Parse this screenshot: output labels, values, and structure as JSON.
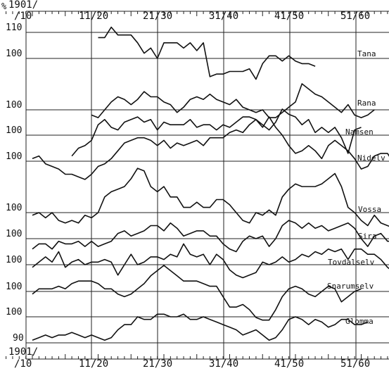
{
  "chart_data": {
    "type": "line",
    "unit_symbol": "%",
    "period_tick_labels": [
      "1901/\n/10",
      "11/20",
      "21/30",
      "31/40",
      "41/50",
      "51/60"
    ],
    "x_years": [
      1905,
      1906,
      1907,
      1908,
      1909,
      1910,
      1911,
      1912,
      1913,
      1914,
      1915,
      1916,
      1917,
      1918,
      1919,
      1920,
      1921,
      1922,
      1923,
      1924,
      1925,
      1926,
      1927,
      1928,
      1929,
      1930,
      1931,
      1932,
      1933,
      1934,
      1935,
      1936,
      1937,
      1938,
      1939,
      1940,
      1941,
      1942,
      1943,
      1944,
      1945,
      1946,
      1947,
      1948,
      1949,
      1950,
      1951,
      1952,
      1953,
      1954,
      1955,
      1956,
      1957,
      1958,
      1959,
      1960
    ],
    "y_reference_labels": [
      "110",
      "100",
      "100",
      "100",
      "100",
      "100",
      "100",
      "100",
      "100",
      "100",
      "90"
    ],
    "grid": true,
    "series": [
      {
        "name": "Tana",
        "start_year": 1915,
        "values": [
          108,
          108,
          112,
          109,
          109,
          109,
          106,
          102,
          104,
          100,
          106,
          106,
          106,
          104,
          106,
          103,
          106,
          93,
          94,
          94,
          95,
          95,
          95,
          96,
          92,
          98,
          101,
          101,
          99,
          101,
          99,
          98,
          98,
          97
        ]
      },
      {
        "name": "Rana",
        "start_year": 1914,
        "values": [
          98,
          97,
          100,
          103,
          105,
          104,
          102,
          104,
          107,
          105,
          105,
          103,
          102,
          99,
          101,
          104,
          105,
          104,
          106,
          104,
          103,
          102,
          104,
          101,
          100,
          99,
          100,
          97,
          97,
          99,
          101,
          103,
          110,
          108,
          106,
          105,
          103,
          101,
          99,
          102,
          98,
          97,
          98,
          100
        ]
      },
      {
        "name": "Namsen",
        "start_year": 1911,
        "values": [
          92,
          95,
          96,
          98,
          104,
          106,
          103,
          102,
          105,
          106,
          107,
          105,
          106,
          102,
          105,
          104,
          104,
          104,
          106,
          103,
          104,
          104,
          102,
          104,
          103,
          105,
          107,
          107,
          106,
          104,
          102,
          105,
          110,
          108,
          107,
          104,
          106,
          101,
          103,
          101,
          103,
          99,
          93,
          102,
          103
        ]
      },
      {
        "name": "Nidelv",
        "start_year": 1905,
        "values": [
          101,
          102,
          99,
          98,
          97,
          95,
          95,
          94,
          93,
          95,
          98,
          99,
          101,
          104,
          107,
          108,
          109,
          109,
          108,
          106,
          108,
          105,
          107,
          106,
          107,
          108,
          106,
          109,
          109,
          109,
          111,
          112,
          111,
          114,
          116,
          113,
          117,
          113,
          110,
          106,
          103,
          104,
          106,
          104,
          101,
          106,
          108,
          106,
          104,
          101,
          97,
          98,
          102,
          103,
          103,
          99
        ]
      },
      {
        "name": "Vossa",
        "start_year": 1905,
        "values": [
          99,
          100,
          98,
          100,
          97,
          96,
          97,
          96,
          99,
          98,
          100,
          106,
          108,
          109,
          110,
          113,
          117,
          116,
          110,
          108,
          110,
          106,
          106,
          102,
          102,
          104,
          102,
          102,
          105,
          105,
          103,
          100,
          97,
          96,
          100,
          99,
          101,
          99,
          106,
          109,
          111,
          110,
          110,
          110,
          111,
          113,
          115,
          110,
          102,
          100,
          97,
          95,
          99,
          96,
          95,
          94
        ]
      },
      {
        "name": "Sira",
        "start_year": 1905,
        "values": [
          96,
          98,
          98,
          96,
          99,
          98,
          98,
          99,
          97,
          99,
          97,
          98,
          99,
          102,
          103,
          101,
          102,
          103,
          105,
          105,
          103,
          106,
          104,
          101,
          102,
          103,
          103,
          101,
          101,
          98,
          96,
          95,
          99,
          101,
          100,
          101,
          97,
          100,
          105,
          107,
          106,
          104,
          106,
          104,
          105,
          103,
          104,
          105,
          106,
          104,
          100,
          97,
          101,
          102,
          99,
          99
        ]
      },
      {
        "name": "Tovdalselv",
        "start_year": 1905,
        "values": [
          99,
          101,
          103,
          101,
          105,
          99,
          101,
          102,
          100,
          101,
          101,
          102,
          101,
          96,
          100,
          104,
          100,
          101,
          103,
          103,
          102,
          104,
          103,
          108,
          104,
          103,
          104,
          100,
          104,
          102,
          98,
          96,
          95,
          96,
          97,
          101,
          100,
          101,
          103,
          101,
          102,
          104,
          103,
          105,
          104,
          106,
          105,
          106,
          102,
          106,
          106,
          104,
          104,
          102,
          99,
          97
        ]
      },
      {
        "name": "Snarumselv",
        "start_year": 1905,
        "values": [
          99,
          101,
          101,
          101,
          102,
          101,
          103,
          104,
          104,
          104,
          103,
          101,
          101,
          99,
          98,
          99,
          101,
          103,
          106,
          108,
          110,
          108,
          106,
          104,
          104,
          104,
          103,
          102,
          102,
          98,
          94,
          94,
          95,
          93,
          90,
          89,
          89,
          93,
          98,
          101,
          102,
          101,
          99,
          98,
          100,
          102,
          101,
          96,
          98,
          100,
          101
        ]
      },
      {
        "name": "Glomma",
        "start_year": 1905,
        "values": [
          91,
          92,
          93,
          92,
          93,
          93,
          94,
          93,
          92,
          93,
          92,
          91,
          92,
          95,
          97,
          97,
          100,
          99,
          99,
          101,
          101,
          100,
          100,
          101,
          99,
          99,
          100,
          99,
          98,
          97,
          96,
          95,
          93,
          94,
          95,
          93,
          91,
          92,
          95,
          99,
          100,
          99,
          97,
          99,
          98,
          96,
          97,
          99,
          99,
          97,
          97,
          98
        ]
      }
    ]
  }
}
